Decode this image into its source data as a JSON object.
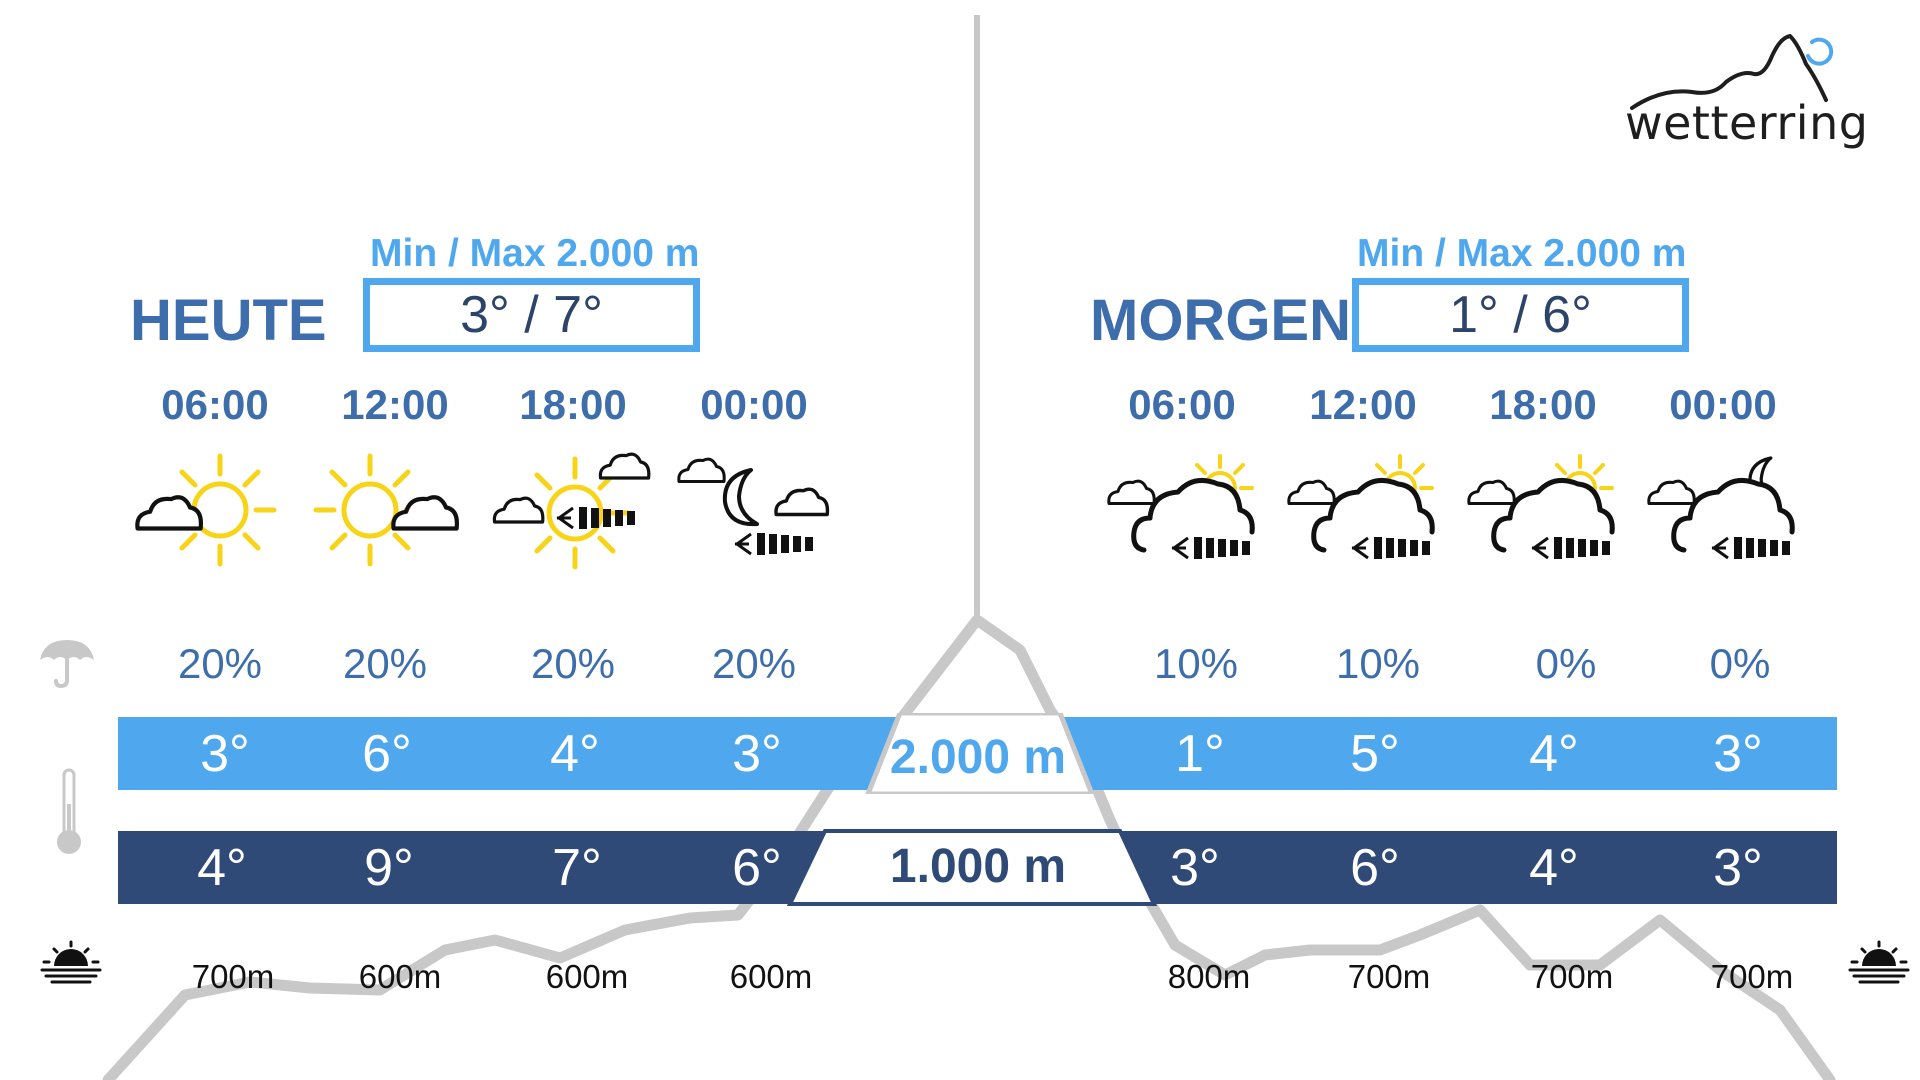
{
  "brand": {
    "name": "wetterring"
  },
  "colors": {
    "light_band": "#4fa8ee",
    "dark_band": "#304a78",
    "title": "#3d6eab",
    "mountain": "#c8c8c8"
  },
  "altitudes": {
    "upper": "2.000 m",
    "lower": "1.000 m"
  },
  "days": [
    {
      "title": "HEUTE",
      "minmax_label": "Min / Max 2.000 m",
      "minmax_value": "3° / 7°",
      "slots": [
        {
          "time": "06:00",
          "icon": "sun-with-cloud-icon",
          "precip": "20%",
          "temp_upper": "3°",
          "temp_lower": "4°",
          "snowline": "700m"
        },
        {
          "time": "12:00",
          "icon": "sun-with-cloud-icon",
          "precip": "20%",
          "temp_upper": "6°",
          "temp_lower": "9°",
          "snowline": "600m"
        },
        {
          "time": "18:00",
          "icon": "sun-cloud-wind-icon",
          "precip": "20%",
          "temp_upper": "4°",
          "temp_lower": "7°",
          "snowline": "600m"
        },
        {
          "time": "00:00",
          "icon": "moon-cloud-wind-icon",
          "precip": "20%",
          "temp_upper": "3°",
          "temp_lower": "6°",
          "snowline": "600m"
        }
      ]
    },
    {
      "title": "MORGEN",
      "minmax_label": "Min / Max 2.000 m",
      "minmax_value": "1° / 6°",
      "slots": [
        {
          "time": "06:00",
          "icon": "cloud-sun-wind-icon",
          "precip": "10%",
          "temp_upper": "1°",
          "temp_lower": "3°",
          "snowline": "800m"
        },
        {
          "time": "12:00",
          "icon": "cloud-sun-wind-icon",
          "precip": "10%",
          "temp_upper": "5°",
          "temp_lower": "6°",
          "snowline": "700m"
        },
        {
          "time": "18:00",
          "icon": "cloud-sun-wind-icon",
          "precip": "0%",
          "temp_upper": "4°",
          "temp_lower": "4°",
          "snowline": "700m"
        },
        {
          "time": "00:00",
          "icon": "cloud-moon-wind-icon",
          "precip": "0%",
          "temp_upper": "3°",
          "temp_lower": "3°",
          "snowline": "700m"
        }
      ]
    }
  ],
  "side_icons": [
    "umbrella-icon",
    "thermometer-icon",
    "sunrise-icon",
    "sunset-icon"
  ]
}
